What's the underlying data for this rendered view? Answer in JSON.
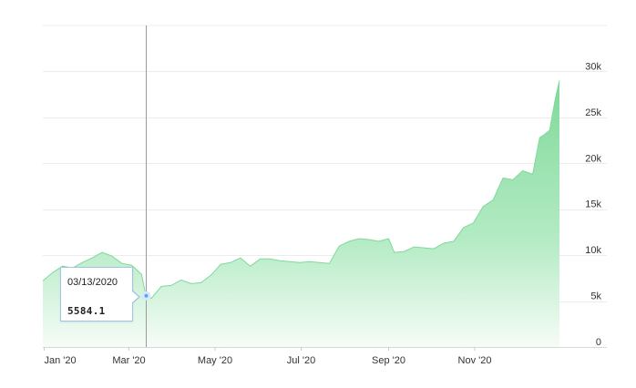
{
  "chart_data": {
    "type": "area",
    "title": "",
    "xlabel": "",
    "ylabel": "",
    "ylim": [
      0,
      35000
    ],
    "grid": true,
    "y_axis_side": "right",
    "colors": {
      "fill_top": "#7fd99a",
      "fill_bottom": "#f6fcf7",
      "line": "#7fd99a",
      "crosshair": "#9a9a9a",
      "marker": "#5aa7f0"
    },
    "x_ticks": [
      {
        "label": "Jan '20",
        "date": "2020-01-01"
      },
      {
        "label": "Mar '20",
        "date": "2020-03-01"
      },
      {
        "label": "May '20",
        "date": "2020-05-01"
      },
      {
        "label": "Jul '20",
        "date": "2020-07-01"
      },
      {
        "label": "Sep '20",
        "date": "2020-09-01"
      },
      {
        "label": "Nov '20",
        "date": "2020-11-01"
      }
    ],
    "y_ticks": [
      {
        "label": "0",
        "value": 0
      },
      {
        "label": "5k",
        "value": 5000
      },
      {
        "label": "10k",
        "value": 10000
      },
      {
        "label": "15k",
        "value": 15000
      },
      {
        "label": "20k",
        "value": 20000
      },
      {
        "label": "25k",
        "value": 25000
      },
      {
        "label": "30k",
        "value": 30000
      }
    ],
    "series": [
      {
        "x": [
          "2019-12-31",
          "2020-01-07",
          "2020-01-14",
          "2020-01-21",
          "2020-01-28",
          "2020-02-04",
          "2020-02-11",
          "2020-02-18",
          "2020-02-25",
          "2020-03-03",
          "2020-03-10",
          "2020-03-13",
          "2020-03-17",
          "2020-03-24",
          "2020-03-31",
          "2020-04-07",
          "2020-04-14",
          "2020-04-21",
          "2020-04-28",
          "2020-05-05",
          "2020-05-12",
          "2020-05-19",
          "2020-05-26",
          "2020-06-02",
          "2020-06-09",
          "2020-06-16",
          "2020-06-23",
          "2020-06-30",
          "2020-07-07",
          "2020-07-14",
          "2020-07-21",
          "2020-07-28",
          "2020-08-04",
          "2020-08-11",
          "2020-08-18",
          "2020-08-25",
          "2020-09-01",
          "2020-09-05",
          "2020-09-12",
          "2020-09-19",
          "2020-09-26",
          "2020-10-03",
          "2020-10-10",
          "2020-10-17",
          "2020-10-24",
          "2020-10-31",
          "2020-11-07",
          "2020-11-14",
          "2020-11-21",
          "2020-11-28",
          "2020-12-05",
          "2020-12-12",
          "2020-12-17",
          "2020-12-20",
          "2020-12-24",
          "2020-12-28",
          "2020-12-31"
        ],
        "values": [
          7200,
          8100,
          8800,
          8600,
          9200,
          9700,
          10300,
          9900,
          9100,
          8900,
          7900,
          5584,
          5300,
          6600,
          6700,
          7300,
          6900,
          7000,
          7800,
          9000,
          9200,
          9700,
          8800,
          9600,
          9600,
          9400,
          9300,
          9200,
          9300,
          9200,
          9100,
          11000,
          11500,
          11800,
          11700,
          11500,
          11800,
          10300,
          10400,
          10900,
          10800,
          10700,
          11300,
          11500,
          13000,
          13500,
          15300,
          16000,
          18400,
          18200,
          19200,
          18800,
          22800,
          23100,
          23600,
          27000,
          29000
        ]
      }
    ],
    "tooltip": {
      "date": "03/13/2020",
      "value": "5584.1"
    }
  }
}
